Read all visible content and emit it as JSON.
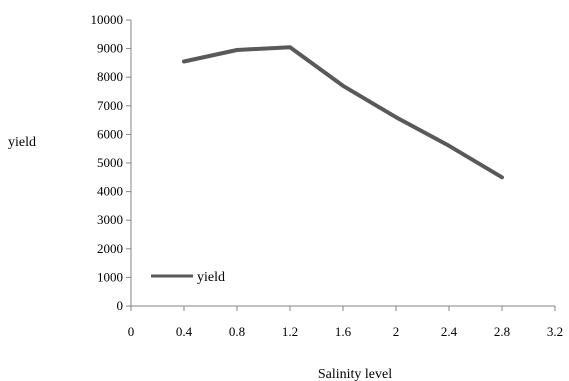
{
  "chart_data": {
    "type": "line",
    "title": "",
    "xlabel": "Salinity level",
    "ylabel": "yield",
    "xlim": [
      0,
      3.2
    ],
    "ylim": [
      0,
      10000
    ],
    "x_ticks": [
      "0",
      "0.4",
      "0.8",
      "1.2",
      "1.6",
      "2",
      "2.4",
      "2.8",
      "3.2"
    ],
    "y_ticks": [
      "0",
      "1000",
      "2000",
      "3000",
      "4000",
      "5000",
      "6000",
      "7000",
      "8000",
      "9000",
      "10000"
    ],
    "grid": false,
    "legend": {
      "position": "inside-bottom-left",
      "entries": [
        "yield"
      ]
    },
    "series": [
      {
        "name": "yield",
        "color": "#595959",
        "x": [
          0.4,
          0.8,
          1.2,
          1.6,
          2.0,
          2.4,
          2.8
        ],
        "y": [
          8550,
          8950,
          9050,
          7700,
          6600,
          5600,
          4500
        ]
      }
    ]
  }
}
